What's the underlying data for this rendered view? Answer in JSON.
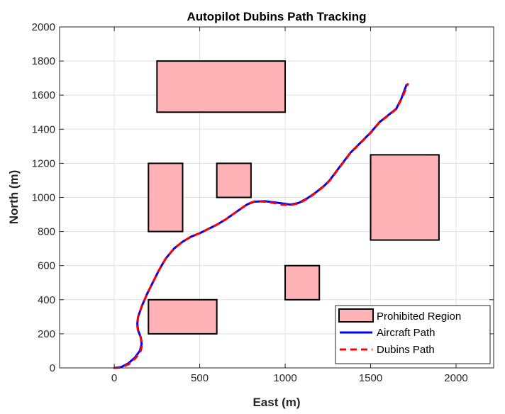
{
  "chart_data": {
    "type": "line",
    "title": "Autopilot Dubins Path Tracking",
    "xlabel": "East (m)",
    "ylabel": "North (m)",
    "xlim": [
      -320,
      2220
    ],
    "ylim": [
      0,
      2000
    ],
    "x_ticks": [
      0,
      500,
      1000,
      1500,
      2000
    ],
    "y_ticks": [
      0,
      200,
      400,
      600,
      800,
      1000,
      1200,
      1400,
      1600,
      1800,
      2000
    ],
    "grid": true,
    "legend_position": "bottom-right",
    "colors": {
      "region_fill": "#ffb3b6",
      "region_edge": "#000000",
      "aircraft": "#0000ff",
      "dubins": "#ff0000"
    },
    "regions": {
      "name": "Prohibited Region",
      "rects": [
        {
          "x0": 250,
          "x1": 1000,
          "y0": 1500,
          "y1": 1800
        },
        {
          "x0": 200,
          "x1": 400,
          "y0": 800,
          "y1": 1200
        },
        {
          "x0": 600,
          "x1": 800,
          "y0": 1000,
          "y1": 1200
        },
        {
          "x0": 1500,
          "x1": 1900,
          "y0": 750,
          "y1": 1250
        },
        {
          "x0": 1000,
          "x1": 1200,
          "y0": 400,
          "y1": 600
        },
        {
          "x0": 200,
          "x1": 600,
          "y0": 200,
          "y1": 400
        }
      ]
    },
    "series": [
      {
        "name": "Aircraft Path",
        "style": "solid",
        "x": [
          0,
          40,
          80,
          120,
          150,
          160,
          155,
          140,
          135,
          140,
          160,
          190,
          220,
          260,
          300,
          350,
          400,
          450,
          500,
          550,
          600,
          650,
          700,
          750,
          780,
          820,
          880,
          930,
          980,
          1030,
          1080,
          1130,
          1180,
          1230,
          1260,
          1290,
          1320,
          1350,
          1380,
          1420,
          1460,
          1500,
          1550,
          1600,
          1650,
          1680,
          1710
        ],
        "y": [
          0,
          5,
          25,
          60,
          100,
          140,
          180,
          220,
          260,
          300,
          360,
          430,
          490,
          570,
          640,
          700,
          740,
          770,
          790,
          815,
          840,
          870,
          905,
          940,
          960,
          975,
          978,
          972,
          965,
          958,
          968,
          995,
          1030,
          1070,
          1100,
          1140,
          1180,
          1220,
          1260,
          1300,
          1340,
          1380,
          1440,
          1480,
          1520,
          1580,
          1660
        ]
      },
      {
        "name": "Dubins Path",
        "style": "dashed",
        "x": [
          0,
          40,
          85,
          125,
          155,
          163,
          155,
          138,
          133,
          140,
          160,
          190,
          220,
          260,
          300,
          350,
          400,
          450,
          500,
          550,
          600,
          650,
          700,
          750,
          780,
          820,
          880,
          930,
          980,
          1030,
          1080,
          1130,
          1180,
          1230,
          1260,
          1290,
          1320,
          1350,
          1380,
          1420,
          1460,
          1500,
          1550,
          1600,
          1650,
          1685,
          1720
        ],
        "y": [
          0,
          3,
          22,
          58,
          100,
          140,
          180,
          220,
          260,
          300,
          360,
          430,
          490,
          570,
          640,
          700,
          740,
          770,
          790,
          815,
          840,
          870,
          905,
          940,
          962,
          977,
          975,
          968,
          958,
          955,
          965,
          992,
          1028,
          1068,
          1098,
          1138,
          1178,
          1218,
          1258,
          1298,
          1338,
          1378,
          1438,
          1478,
          1518,
          1585,
          1670
        ]
      }
    ]
  }
}
